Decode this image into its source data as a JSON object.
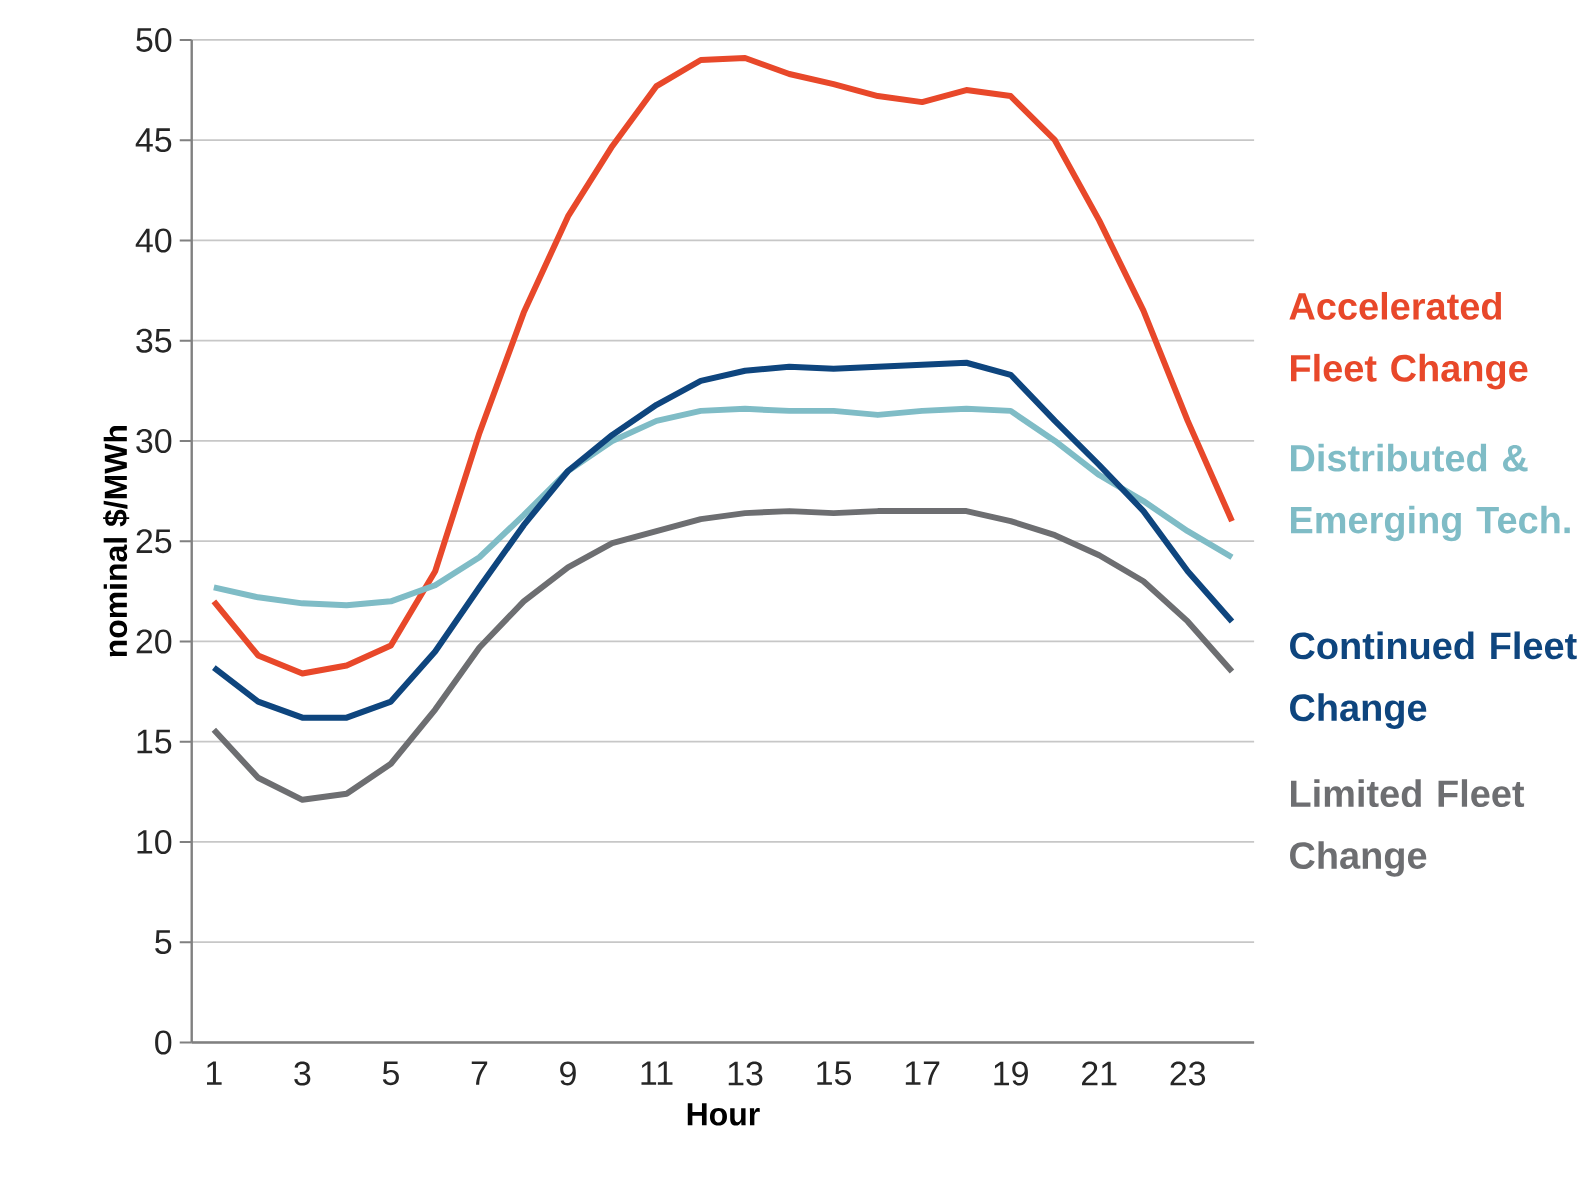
{
  "chart_data": {
    "type": "line",
    "xlabel": "Hour",
    "ylabel": "nominal $/MWh",
    "categories": [
      "1",
      null,
      "3",
      null,
      "5",
      null,
      "7",
      null,
      "9",
      null,
      "11",
      null,
      "13",
      null,
      "15",
      null,
      "17",
      null,
      "19",
      null,
      "21",
      null,
      "23",
      null
    ],
    "ylim": [
      0,
      50
    ],
    "yticks": [
      0,
      5,
      10,
      15,
      20,
      25,
      30,
      35,
      40,
      45,
      50
    ],
    "grid": "y",
    "marker": "none",
    "line_style": "solid",
    "series": [
      {
        "name": "Accelerated Fleet Change",
        "color": "#e8482a",
        "values": [
          22.0,
          19.3,
          18.4,
          18.8,
          19.8,
          23.5,
          30.4,
          36.4,
          41.2,
          44.7,
          47.7,
          49.0,
          49.1,
          48.3,
          47.8,
          47.2,
          46.9,
          47.5,
          47.2,
          45.0,
          41.0,
          36.5,
          31.0,
          26.0
        ]
      },
      {
        "name": "Distributed & Emerging Tech.",
        "color": "#7fbcc6",
        "values": [
          22.7,
          22.2,
          21.9,
          21.8,
          22.0,
          22.8,
          24.2,
          26.3,
          28.5,
          30.0,
          31.0,
          31.5,
          31.6,
          31.5,
          31.5,
          31.3,
          31.5,
          31.6,
          31.5,
          30.0,
          28.3,
          27.0,
          25.5,
          24.2
        ]
      },
      {
        "name": "Continued Fleet Change",
        "color": "#0e457e",
        "values": [
          18.7,
          17.0,
          16.2,
          16.2,
          17.0,
          19.5,
          22.7,
          25.8,
          28.5,
          30.3,
          31.8,
          33.0,
          33.5,
          33.7,
          33.6,
          33.7,
          33.8,
          33.9,
          33.3,
          31.0,
          28.8,
          26.5,
          23.5,
          21.0
        ]
      },
      {
        "name": "Limited Fleet Change",
        "color": "#6d6e71",
        "values": [
          15.6,
          13.2,
          12.1,
          12.4,
          13.9,
          16.6,
          19.7,
          22.0,
          23.7,
          24.9,
          25.5,
          26.1,
          26.4,
          26.5,
          26.4,
          26.5,
          26.5,
          26.5,
          26.0,
          25.3,
          24.3,
          23.0,
          21.0,
          18.5
        ]
      }
    ]
  }
}
